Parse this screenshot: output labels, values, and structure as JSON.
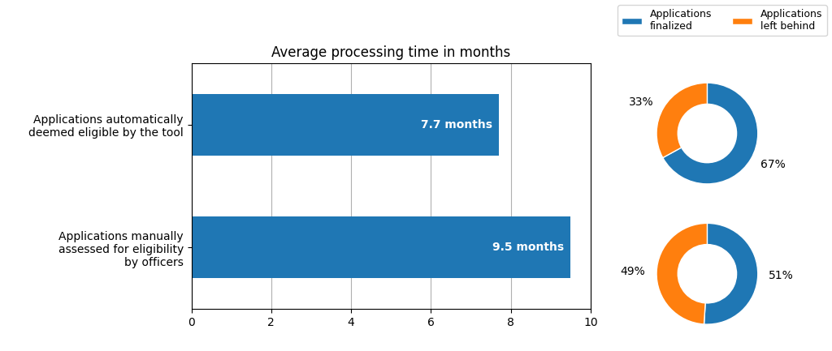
{
  "chart_data": [
    {
      "type": "bar",
      "orientation": "horizontal",
      "title": "Average processing time in months",
      "categories": [
        "Applications automatically\ndeemed eligible by the tool",
        "Applications manually\nassessed for eligibility\nby officers"
      ],
      "values": [
        7.7,
        9.5
      ],
      "value_labels": [
        "7.7 months",
        "9.5 months"
      ],
      "data_labels": true,
      "xlim": [
        0,
        10
      ],
      "xticks": [
        0,
        2,
        4,
        6,
        8,
        10
      ],
      "grid": true
    },
    {
      "type": "pie",
      "categories": [
        "Applications\nfinalized",
        "Applications\nleft behind"
      ],
      "values": [
        67,
        33
      ],
      "value_labels": [
        "67%",
        "33%"
      ],
      "data_labels": true,
      "legend": "upper right"
    },
    {
      "type": "pie",
      "categories": [
        "Applications\nfinalized",
        "Applications\nleft behind"
      ],
      "values": [
        51,
        49
      ],
      "value_labels": [
        "51%",
        "49%"
      ],
      "data_labels": true
    }
  ]
}
